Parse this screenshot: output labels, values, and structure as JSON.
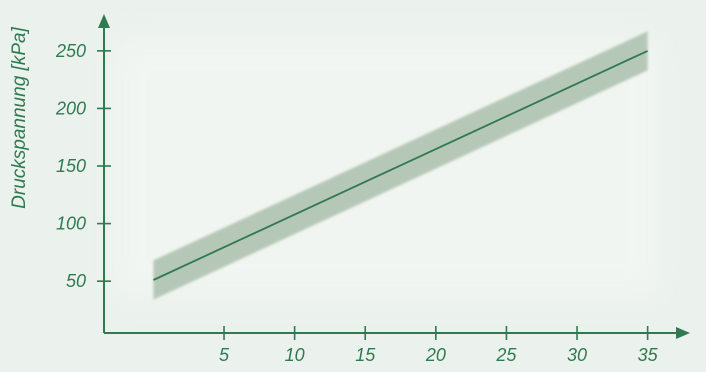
{
  "chart_data": {
    "type": "line",
    "title": "",
    "xlabel": "",
    "ylabel": "Druckspannung [kPa]",
    "xlim": [
      -3.5,
      38
    ],
    "ylim": [
      5,
      282
    ],
    "x_ticks": [
      5,
      10,
      15,
      20,
      25,
      30,
      35
    ],
    "y_ticks": [
      50,
      100,
      150,
      200,
      250
    ],
    "grid": false,
    "series": [
      {
        "x": [
          0,
          35
        ],
        "y": [
          51,
          250
        ],
        "band_upper": [
          68,
          267
        ],
        "band_lower": [
          34,
          233
        ]
      }
    ]
  },
  "colors": {
    "background": "#ebf1ec",
    "axis": "#2f7a50",
    "line": "#2f7a50",
    "band": "#b5c7b6",
    "text": "#2f7a50"
  }
}
